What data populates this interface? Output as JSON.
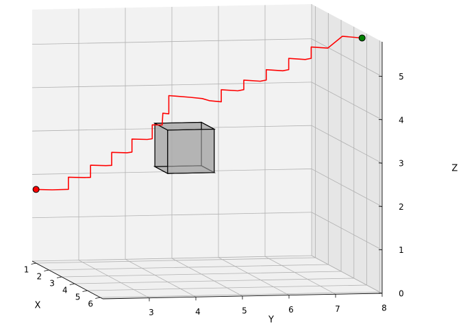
{
  "chart_data": {
    "type": "line",
    "projection": "3d",
    "title": "",
    "xlabel": "X",
    "ylabel": "Y",
    "zlabel": "Z",
    "x_ticks": [
      "1",
      "2",
      "3",
      "4",
      "5",
      "6"
    ],
    "y_ticks": [
      "3",
      "4",
      "5",
      "6",
      "7",
      "8"
    ],
    "z_ticks": [
      "0",
      "1",
      "2",
      "3",
      "4",
      "5"
    ],
    "xlim": [
      0.7,
      6.2
    ],
    "ylim": [
      2,
      8
    ],
    "zlim": [
      0,
      5.8
    ],
    "grid": true,
    "path": {
      "color": "#ff0000",
      "points": [
        [
          1.0,
          2.0,
          1.7
        ],
        [
          1.1,
          2.32,
          1.7
        ],
        [
          1.2,
          2.64,
          1.72
        ],
        [
          1.2,
          2.64,
          2.0
        ],
        [
          1.3,
          2.96,
          2.0
        ],
        [
          1.4,
          3.06,
          2.02
        ],
        [
          1.4,
          3.06,
          2.3
        ],
        [
          1.5,
          3.36,
          2.3
        ],
        [
          1.6,
          3.46,
          2.32
        ],
        [
          1.6,
          3.46,
          2.62
        ],
        [
          1.7,
          3.76,
          2.62
        ],
        [
          1.8,
          3.84,
          2.65
        ],
        [
          1.8,
          3.84,
          2.95
        ],
        [
          1.9,
          4.14,
          2.95
        ],
        [
          2.0,
          4.22,
          2.98
        ],
        [
          2.0,
          4.22,
          3.3
        ],
        [
          2.05,
          4.42,
          3.3
        ],
        [
          2.1,
          4.42,
          3.58
        ],
        [
          2.2,
          4.52,
          3.58
        ],
        [
          2.2,
          4.52,
          4.0
        ],
        [
          2.5,
          4.9,
          4.0
        ],
        [
          2.7,
          5.1,
          4.0
        ],
        [
          2.9,
          5.2,
          3.98
        ],
        [
          3.1,
          5.4,
          3.98
        ],
        [
          3.1,
          5.4,
          4.26
        ],
        [
          3.3,
          5.7,
          4.26
        ],
        [
          3.4,
          5.8,
          4.3
        ],
        [
          3.4,
          5.8,
          4.52
        ],
        [
          3.6,
          6.1,
          4.52
        ],
        [
          3.7,
          6.2,
          4.56
        ],
        [
          3.7,
          6.2,
          4.8
        ],
        [
          3.9,
          6.5,
          4.8
        ],
        [
          4.0,
          6.6,
          4.84
        ],
        [
          4.0,
          6.6,
          5.1
        ],
        [
          4.2,
          6.9,
          5.1
        ],
        [
          4.3,
          7.0,
          5.14
        ],
        [
          4.3,
          7.0,
          5.4
        ],
        [
          4.5,
          7.3,
          5.4
        ],
        [
          4.7,
          7.56,
          5.7
        ],
        [
          5.0,
          7.9,
          5.7
        ]
      ]
    },
    "start_point": {
      "x": 1.0,
      "y": 2.0,
      "z": 1.7,
      "color": "#ff0000"
    },
    "end_point": {
      "x": 5.0,
      "y": 7.9,
      "z": 5.7,
      "color": "#008000"
    },
    "obstacle": {
      "type": "box",
      "x": [
        3.0,
        4.0
      ],
      "y": [
        4.0,
        5.0
      ],
      "z": [
        2.5,
        3.5
      ],
      "face_color": "#a8a8a8",
      "edge_color": "#000000"
    }
  }
}
